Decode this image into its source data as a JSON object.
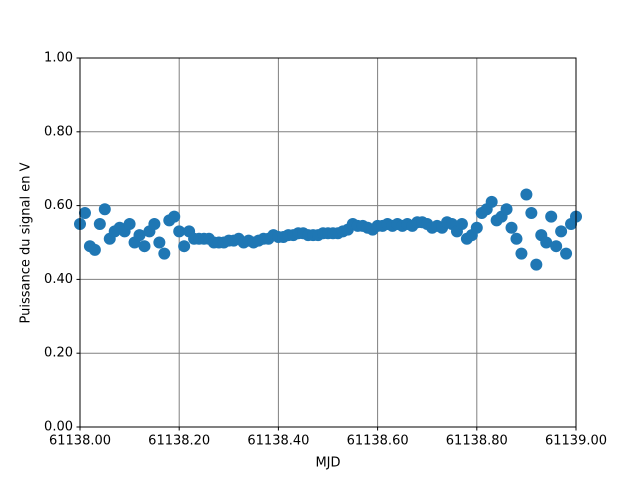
{
  "chart_data": {
    "type": "scatter",
    "xlabel": "MJD",
    "ylabel": "Puissance du signal en V",
    "color": "#1f77b4",
    "grid": true,
    "grid_color": "#808080",
    "xlim": [
      61138.0,
      61139.0
    ],
    "xticks": [
      {
        "value": 61138.0,
        "label": "61138.00"
      },
      {
        "value": 61138.2,
        "label": "61138.20"
      },
      {
        "value": 61138.4,
        "label": "61138.40"
      },
      {
        "value": 61138.6,
        "label": "61138.60"
      },
      {
        "value": 61138.8,
        "label": "61138.80"
      },
      {
        "value": 61139.0,
        "label": "61139.00"
      }
    ],
    "ylim": [
      0,
      1
    ],
    "yticks": [
      {
        "value": 0,
        "label": "0.00"
      },
      {
        "value": 0.2,
        "label": "0.20"
      },
      {
        "value": 0.4,
        "label": "0.40"
      },
      {
        "value": 0.6,
        "label": "0.60"
      },
      {
        "value": 0.8,
        "label": "0.80"
      },
      {
        "value": 1,
        "label": "1.00"
      }
    ],
    "x": [
      61138.0,
      61138.01,
      61138.02,
      61138.03,
      61138.04,
      61138.05,
      61138.06,
      61138.07,
      61138.08,
      61138.09,
      61138.1,
      61138.11,
      61138.12,
      61138.13,
      61138.14,
      61138.15,
      61138.16,
      61138.17,
      61138.18,
      61138.19,
      61138.2,
      61138.21,
      61138.22,
      61138.23,
      61138.24,
      61138.25,
      61138.26,
      61138.27,
      61138.28,
      61138.29,
      61138.3,
      61138.31,
      61138.32,
      61138.33,
      61138.34,
      61138.35,
      61138.36,
      61138.37,
      61138.38,
      61138.39,
      61138.4,
      61138.41,
      61138.42,
      61138.43,
      61138.44,
      61138.45,
      61138.46,
      61138.47,
      61138.48,
      61138.49,
      61138.5,
      61138.51,
      61138.52,
      61138.53,
      61138.54,
      61138.55,
      61138.56,
      61138.57,
      61138.58,
      61138.59,
      61138.6,
      61138.61,
      61138.62,
      61138.63,
      61138.64,
      61138.65,
      61138.66,
      61138.67,
      61138.68,
      61138.69,
      61138.7,
      61138.71,
      61138.72,
      61138.73,
      61138.74,
      61138.75,
      61138.76,
      61138.77,
      61138.78,
      61138.79,
      61138.8,
      61138.81,
      61138.82,
      61138.83,
      61138.84,
      61138.85,
      61138.86,
      61138.87,
      61138.88,
      61138.89,
      61138.9,
      61138.91,
      61138.92,
      61138.93,
      61138.94,
      61138.95,
      61138.96,
      61138.97,
      61138.98,
      61138.99,
      61139.0
    ],
    "y": [
      0.55,
      0.58,
      0.49,
      0.48,
      0.55,
      0.59,
      0.51,
      0.53,
      0.54,
      0.53,
      0.55,
      0.5,
      0.52,
      0.49,
      0.53,
      0.55,
      0.5,
      0.47,
      0.56,
      0.57,
      0.53,
      0.49,
      0.53,
      0.51,
      0.51,
      0.51,
      0.51,
      0.5,
      0.5,
      0.5,
      0.505,
      0.505,
      0.51,
      0.5,
      0.505,
      0.5,
      0.505,
      0.51,
      0.51,
      0.52,
      0.515,
      0.515,
      0.52,
      0.52,
      0.525,
      0.525,
      0.52,
      0.52,
      0.52,
      0.525,
      0.525,
      0.525,
      0.525,
      0.53,
      0.535,
      0.55,
      0.545,
      0.545,
      0.54,
      0.535,
      0.545,
      0.545,
      0.55,
      0.545,
      0.55,
      0.545,
      0.55,
      0.545,
      0.555,
      0.555,
      0.55,
      0.54,
      0.545,
      0.54,
      0.555,
      0.55,
      0.53,
      0.55,
      0.51,
      0.52,
      0.54,
      0.58,
      0.59,
      0.61,
      0.56,
      0.57,
      0.59,
      0.54,
      0.51,
      0.47,
      0.63,
      0.58,
      0.44,
      0.52,
      0.5,
      0.57,
      0.49,
      0.53,
      0.47,
      0.55,
      0.57
    ]
  }
}
